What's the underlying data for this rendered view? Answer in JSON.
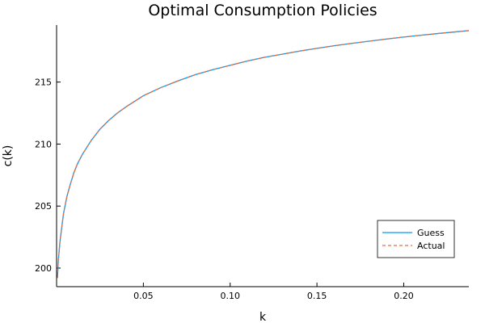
{
  "chart_data": {
    "type": "line",
    "title": "Optimal Consumption Policies",
    "xlabel": "k",
    "ylabel": "c(k)",
    "xlim": [
      0.0,
      0.2375
    ],
    "ylim": [
      198.5,
      219.6
    ],
    "xticks": [
      0.05,
      0.1,
      0.15,
      0.2
    ],
    "xtick_labels": [
      "0.05",
      "0.10",
      "0.15",
      "0.20"
    ],
    "yticks": [
      200,
      205,
      210,
      215
    ],
    "ytick_labels": [
      "200",
      "205",
      "210",
      "215"
    ],
    "grid": false,
    "legend": {
      "position": "bottom-right"
    },
    "series": [
      {
        "name": "Guess",
        "color": "#009af9",
        "style": "solid",
        "x": [
          0.0005,
          0.001,
          0.002,
          0.004,
          0.006,
          0.008,
          0.01,
          0.012,
          0.015,
          0.02,
          0.025,
          0.03,
          0.035,
          0.04,
          0.05,
          0.06,
          0.07,
          0.08,
          0.09,
          0.1,
          0.11,
          0.12,
          0.13,
          0.14,
          0.15,
          0.16,
          0.17,
          0.18,
          0.19,
          0.2,
          0.21,
          0.22,
          0.23,
          0.2375
        ],
        "y": [
          199.2,
          200.6,
          202.2,
          204.4,
          205.8,
          206.8,
          207.7,
          208.4,
          209.2,
          210.3,
          211.2,
          211.9,
          212.5,
          213.0,
          213.9,
          214.55,
          215.1,
          215.6,
          216.0,
          216.35,
          216.7,
          217.0,
          217.25,
          217.5,
          217.72,
          217.93,
          218.12,
          218.3,
          218.47,
          218.63,
          218.78,
          218.92,
          219.05,
          219.15
        ]
      },
      {
        "name": "Actual",
        "color": "#e26f46",
        "style": "dashed",
        "x": [
          0.0005,
          0.001,
          0.002,
          0.004,
          0.006,
          0.008,
          0.01,
          0.012,
          0.015,
          0.02,
          0.025,
          0.03,
          0.035,
          0.04,
          0.05,
          0.06,
          0.07,
          0.08,
          0.09,
          0.1,
          0.11,
          0.12,
          0.13,
          0.14,
          0.15,
          0.16,
          0.17,
          0.18,
          0.19,
          0.2,
          0.21,
          0.22,
          0.23,
          0.2375
        ],
        "y": [
          199.2,
          200.6,
          202.2,
          204.4,
          205.8,
          206.8,
          207.7,
          208.4,
          209.2,
          210.3,
          211.2,
          211.9,
          212.5,
          213.0,
          213.9,
          214.55,
          215.1,
          215.6,
          216.0,
          216.35,
          216.7,
          217.0,
          217.25,
          217.5,
          217.72,
          217.93,
          218.12,
          218.3,
          218.47,
          218.63,
          218.78,
          218.92,
          219.05,
          219.15
        ]
      }
    ]
  }
}
